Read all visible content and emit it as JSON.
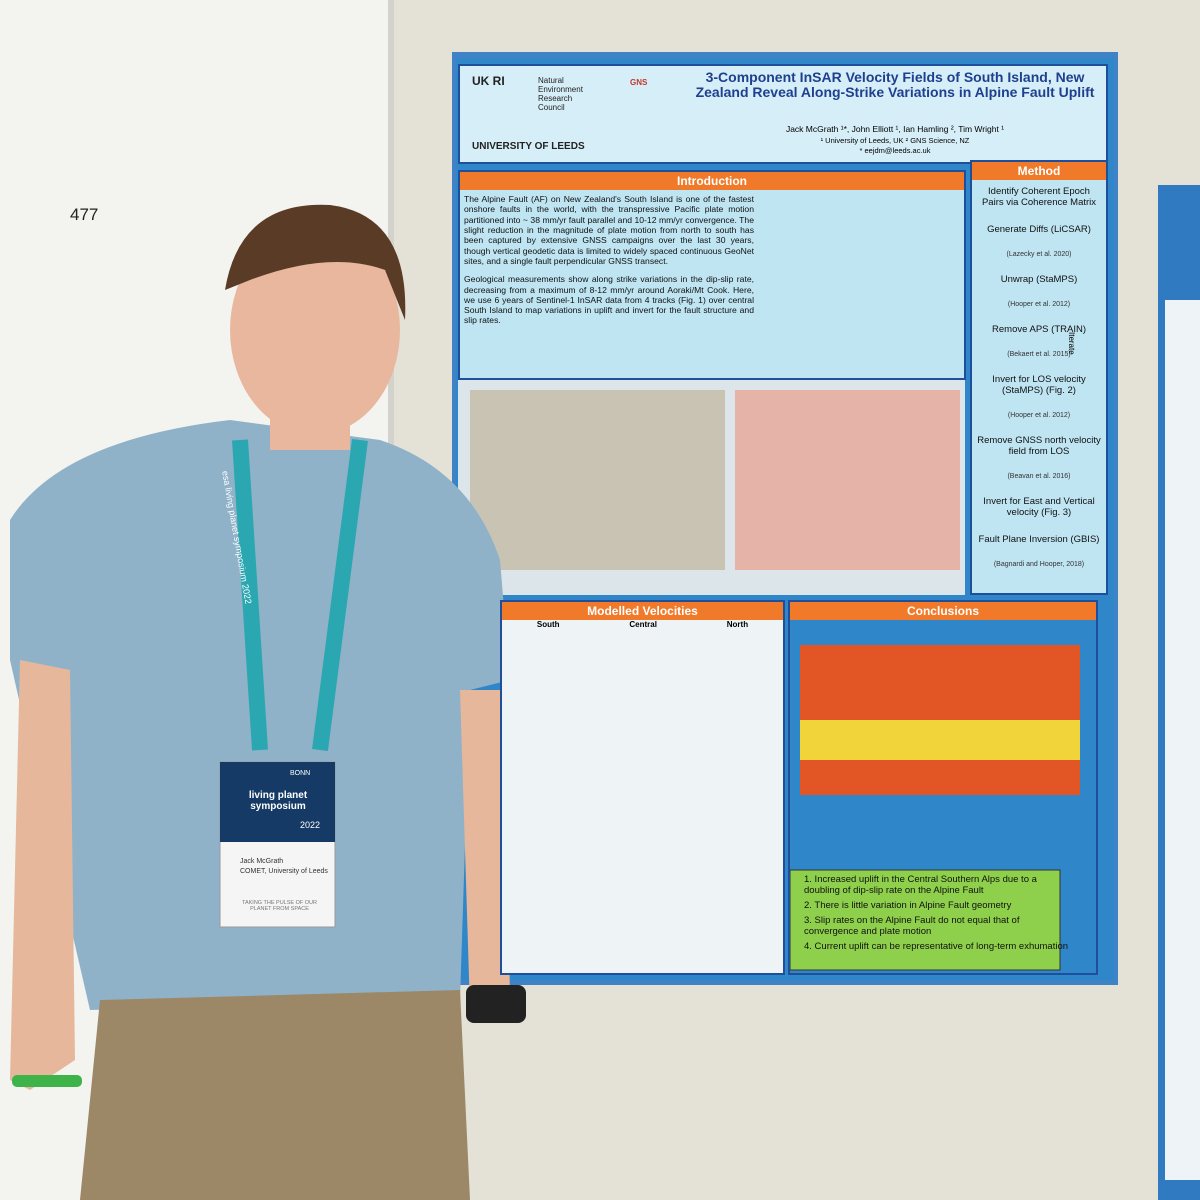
{
  "room_number": "477",
  "poster": {
    "logos": {
      "ukri": "UK RI",
      "nerc": "Natural Environment Research Council",
      "leeds": "UNIVERSITY OF LEEDS",
      "gns": "GNS"
    },
    "title": "3-Component InSAR Velocity Fields of South Island, New Zealand Reveal Along-Strike Variations in Alpine Fault Uplift",
    "authors": "Jack McGrath ¹*, John Elliott ¹, Ian Hamling ², Tim Wright ¹",
    "affiliations": "¹ University of Leeds, UK ² GNS Science, NZ",
    "email": "* eejdm@leeds.ac.uk",
    "introduction": {
      "heading": "Introduction",
      "paragraphs": [
        "The Alpine Fault (AF) on New Zealand's South Island is one of the fastest onshore faults in the world, with the transpressive Pacific plate motion partitioned into ~ 38 mm/yr fault parallel and 10-12 mm/yr convergence. The slight reduction in the magnitude of plate motion from north to south has been captured by extensive GNSS campaigns over the last 30 years, though vertical geodetic data is limited to widely spaced continuous GeoNet sites, and a single fault perpendicular GNSS transect.",
        "Geological measurements show along strike variations in the dip-slip rate, decreasing from a maximum of 8-12 mm/yr around Aoraki/Mt Cook. Here, we use 6 years of Sentinel-1 InSAR data from 4 tracks (Fig. 1) over central South Island to map variations in uplift and invert for the fault structure and slip rates."
      ]
    },
    "method": {
      "heading": "Method",
      "steps": [
        {
          "label": "Identify Coherent Epoch Pairs via Coherence Matrix"
        },
        {
          "label": "Generate Diffs (LiCSAR)",
          "ref": "(Lazecky et al. 2020)"
        },
        {
          "label": "Unwrap (StaMPS)",
          "ref": "(Hooper et al. 2012)"
        },
        {
          "label": "Remove APS (TRAIN)",
          "ref": "(Bekaert et al. 2015)"
        },
        {
          "label": "Invert for LOS velocity (StaMPS) (Fig. 2)",
          "ref": "(Hooper et al. 2012)"
        },
        {
          "label": "Remove GNSS north velocity field from LOS",
          "ref": "(Beavan et al. 2016)"
        },
        {
          "label": "Invert for East and Vertical velocity (Fig. 3)"
        },
        {
          "label": "Fault Plane Inversion (GBIS)",
          "ref": "(Bagnardi and Hooper, 2018)"
        }
      ],
      "iterate": "Iterate"
    },
    "modelled_velocities": {
      "heading": "Modelled Velocities",
      "columns": [
        "South",
        "Central",
        "North"
      ]
    },
    "conclusions": {
      "heading": "Conclusions",
      "items": [
        "1. Increased uplift in the Central Southern Alps due to a doubling of dip-slip rate on the Alpine Fault",
        "2. There is little variation in Alpine Fault geometry",
        "3. Slip rates on the Alpine Fault do not equal that of convergence and plate motion",
        "4. Current uplift can be representative of long-term exhumation"
      ]
    }
  },
  "badge": {
    "event": "living planet symposium",
    "place": "BONN",
    "year": "2022",
    "name": "Jack McGrath",
    "affiliation": "COMET, University of Leeds",
    "tagline": "TAKING THE PULSE OF OUR PLANET FROM SPACE"
  },
  "lanyard": "esa living planet symposium 2022"
}
